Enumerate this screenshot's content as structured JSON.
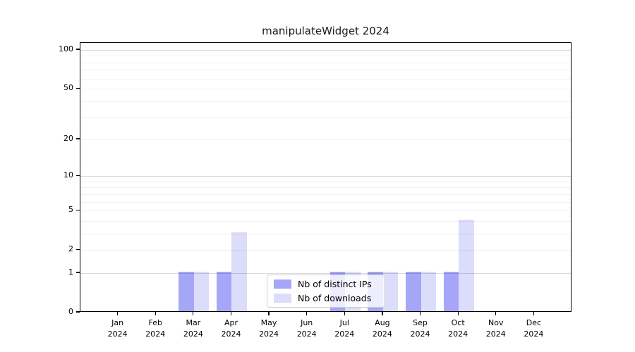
{
  "title": "manipulateWidget 2024",
  "year": "2024",
  "legend": {
    "items": [
      {
        "label": "Nb of distinct IPs",
        "color": "#a6a6f8"
      },
      {
        "label": "Nb of downloads",
        "color": "#dcdcfb"
      }
    ]
  },
  "chart_data": {
    "type": "bar",
    "title": "manipulateWidget 2024",
    "xlabel": "",
    "ylabel": "",
    "categories": [
      "Jan",
      "Feb",
      "Mar",
      "Apr",
      "May",
      "Jun",
      "Jul",
      "Aug",
      "Sep",
      "Oct",
      "Nov",
      "Dec"
    ],
    "category_year": "2024",
    "series": [
      {
        "name": "Nb of distinct IPs",
        "color": "#a6a6f8",
        "values": [
          0,
          0,
          1,
          1,
          0,
          0,
          1,
          1,
          1,
          1,
          0,
          0
        ]
      },
      {
        "name": "Nb of downloads",
        "color": "#dcdcfb",
        "values": [
          0,
          0,
          1,
          3,
          0,
          0,
          1,
          1,
          1,
          4,
          0,
          0
        ]
      }
    ],
    "yscale": "pseudo-log (log1p)",
    "ylim": [
      0,
      113
    ],
    "yticks": [
      100,
      50,
      20,
      10,
      5,
      2,
      1,
      0
    ],
    "grid": {
      "major": [
        1,
        10,
        100
      ],
      "minor": [
        2,
        3,
        4,
        5,
        6,
        7,
        8,
        9,
        20,
        30,
        40,
        50,
        60,
        70,
        80,
        90
      ]
    },
    "grid_on": true,
    "legend_position": "lower center"
  }
}
